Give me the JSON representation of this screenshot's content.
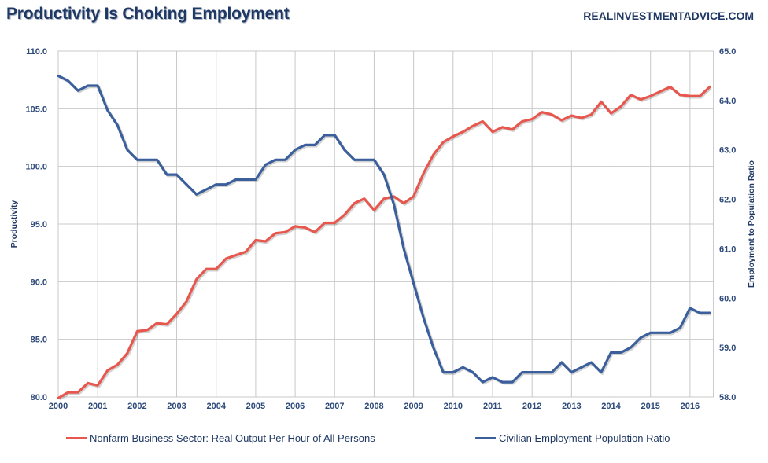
{
  "title": "Productivity Is Choking Employment",
  "watermark": "REALINVESTMENTADVICE.COM",
  "colors": {
    "productivity": "#e8574e",
    "employment": "#3a5f9c",
    "grid": "#c8c8c8",
    "text": "#1f3864"
  },
  "chart_data": {
    "type": "line",
    "title": "Productivity Is Choking Employment",
    "xlabel": "",
    "ylabel": "Productivity",
    "y2label": "Employment to Population Ratio",
    "xlim": [
      2000,
      2016.6
    ],
    "ylim": [
      80,
      110
    ],
    "y2lim": [
      58,
      65
    ],
    "x_ticks": [
      "2000",
      "2001",
      "2002",
      "2003",
      "2004",
      "2005",
      "2006",
      "2007",
      "2008",
      "2009",
      "2010",
      "2011",
      "2012",
      "2013",
      "2014",
      "2015",
      "2016"
    ],
    "y_ticks": [
      "80.0",
      "85.0",
      "90.0",
      "95.0",
      "100.0",
      "105.0",
      "110.0"
    ],
    "y2_ticks": [
      "58.0",
      "59.0",
      "60.0",
      "61.0",
      "62.0",
      "63.0",
      "64.0",
      "65.0"
    ],
    "grid": true,
    "legend_position": "bottom",
    "series": [
      {
        "name": "Nonfarm Business Sector: Real Output Per Hour of All Persons",
        "axis": "left",
        "x": [
          2000.0,
          2000.25,
          2000.5,
          2000.75,
          2001.0,
          2001.25,
          2001.5,
          2001.75,
          2002.0,
          2002.25,
          2002.5,
          2002.75,
          2003.0,
          2003.25,
          2003.5,
          2003.75,
          2004.0,
          2004.25,
          2004.5,
          2004.75,
          2005.0,
          2005.25,
          2005.5,
          2005.75,
          2006.0,
          2006.25,
          2006.5,
          2006.75,
          2007.0,
          2007.25,
          2007.5,
          2007.75,
          2008.0,
          2008.25,
          2008.5,
          2008.75,
          2009.0,
          2009.25,
          2009.5,
          2009.75,
          2010.0,
          2010.25,
          2010.5,
          2010.75,
          2011.0,
          2011.25,
          2011.5,
          2011.75,
          2012.0,
          2012.25,
          2012.5,
          2012.75,
          2013.0,
          2013.25,
          2013.5,
          2013.75,
          2014.0,
          2014.25,
          2014.5,
          2014.75,
          2015.0,
          2015.25,
          2015.5,
          2015.75,
          2016.0,
          2016.25,
          2016.5
        ],
        "values": [
          79.9,
          80.4,
          80.4,
          81.2,
          81.0,
          82.3,
          82.8,
          83.8,
          85.7,
          85.8,
          86.4,
          86.3,
          87.2,
          88.3,
          90.2,
          91.1,
          91.1,
          92.0,
          92.3,
          92.6,
          93.6,
          93.5,
          94.2,
          94.3,
          94.8,
          94.7,
          94.3,
          95.1,
          95.1,
          95.8,
          96.8,
          97.2,
          96.2,
          97.2,
          97.4,
          96.8,
          97.4,
          99.4,
          101.0,
          102.1,
          102.6,
          103.0,
          103.5,
          103.9,
          103.0,
          103.4,
          103.2,
          103.9,
          104.1,
          104.7,
          104.5,
          104.0,
          104.4,
          104.2,
          104.5,
          105.6,
          104.6,
          105.2,
          106.2,
          105.8,
          106.1,
          106.5,
          106.9,
          106.2,
          106.1,
          106.1,
          106.9
        ]
      },
      {
        "name": "Civilian Employment-Population Ratio",
        "axis": "right",
        "x": [
          2000.0,
          2000.25,
          2000.5,
          2000.75,
          2001.0,
          2001.25,
          2001.5,
          2001.75,
          2002.0,
          2002.25,
          2002.5,
          2002.75,
          2003.0,
          2003.25,
          2003.5,
          2003.75,
          2004.0,
          2004.25,
          2004.5,
          2004.75,
          2005.0,
          2005.25,
          2005.5,
          2005.75,
          2006.0,
          2006.25,
          2006.5,
          2006.75,
          2007.0,
          2007.25,
          2007.5,
          2007.75,
          2008.0,
          2008.25,
          2008.5,
          2008.75,
          2009.0,
          2009.25,
          2009.5,
          2009.75,
          2010.0,
          2010.25,
          2010.5,
          2010.75,
          2011.0,
          2011.25,
          2011.5,
          2011.75,
          2012.0,
          2012.25,
          2012.5,
          2012.75,
          2013.0,
          2013.25,
          2013.5,
          2013.75,
          2014.0,
          2014.25,
          2014.5,
          2014.75,
          2015.0,
          2015.25,
          2015.5,
          2015.75,
          2016.0,
          2016.25,
          2016.5
        ],
        "values": [
          64.5,
          64.4,
          64.2,
          64.3,
          64.3,
          63.8,
          63.5,
          63.0,
          62.8,
          62.8,
          62.8,
          62.5,
          62.5,
          62.3,
          62.1,
          62.2,
          62.3,
          62.3,
          62.4,
          62.4,
          62.4,
          62.7,
          62.8,
          62.8,
          63.0,
          63.1,
          63.1,
          63.3,
          63.3,
          63.0,
          62.8,
          62.8,
          62.8,
          62.5,
          61.9,
          61.0,
          60.3,
          59.6,
          59.0,
          58.5,
          58.5,
          58.6,
          58.5,
          58.3,
          58.4,
          58.3,
          58.3,
          58.5,
          58.5,
          58.5,
          58.5,
          58.7,
          58.5,
          58.6,
          58.7,
          58.5,
          58.9,
          58.9,
          59.0,
          59.2,
          59.3,
          59.3,
          59.3,
          59.4,
          59.8,
          59.7,
          59.7
        ]
      }
    ]
  }
}
